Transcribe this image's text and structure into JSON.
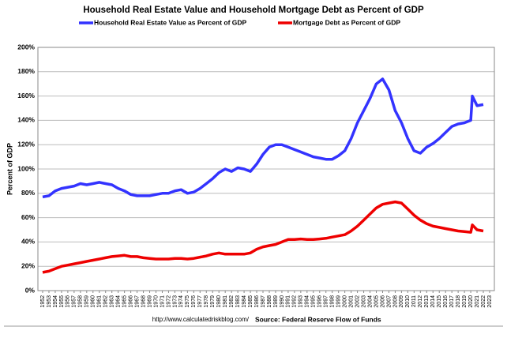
{
  "chart_data": {
    "type": "line",
    "title": "Household Real Estate Value and Household Mortgage Debt as Percent of GDP",
    "y_label": "Percent of GDP",
    "source_url": "http://www.calculatedriskblog.com/",
    "source": "Source: Federal Reserve Flow of Funds",
    "grid": true,
    "legend": "top",
    "xlim": [
      1952,
      2023
    ],
    "xticks": [
      1952,
      1953,
      1954,
      1955,
      1956,
      1957,
      1958,
      1959,
      1960,
      1961,
      1962,
      1963,
      1964,
      1965,
      1966,
      1967,
      1968,
      1969,
      1970,
      1971,
      1972,
      1973,
      1974,
      1975,
      1976,
      1977,
      1978,
      1979,
      1980,
      1981,
      1982,
      1983,
      1984,
      1985,
      1986,
      1987,
      1988,
      1989,
      1990,
      1991,
      1992,
      1993,
      1994,
      1995,
      1996,
      1997,
      1998,
      1999,
      2000,
      2001,
      2002,
      2003,
      2004,
      2005,
      2006,
      2007,
      2008,
      2009,
      2010,
      2011,
      2012,
      2013,
      2014,
      2015,
      2016,
      2017,
      2018,
      2019,
      2020,
      2021,
      2022,
      2023
    ],
    "ylim": [
      0,
      200
    ],
    "yticks": [
      {
        "value": 0,
        "label": "0%"
      },
      {
        "value": 20,
        "label": "20%"
      },
      {
        "value": 40,
        "label": "40%"
      },
      {
        "value": 60,
        "label": "60%"
      },
      {
        "value": 80,
        "label": "80%"
      },
      {
        "value": 100,
        "label": "100%"
      },
      {
        "value": 120,
        "label": "120%"
      },
      {
        "value": 140,
        "label": "140%"
      },
      {
        "value": 160,
        "label": "160%"
      },
      {
        "value": 180,
        "label": "180%"
      },
      {
        "value": 200,
        "label": "200%"
      }
    ],
    "x": [
      1952,
      1953,
      1954,
      1955,
      1956,
      1957,
      1958,
      1959,
      1960,
      1961,
      1962,
      1963,
      1964,
      1965,
      1966,
      1967,
      1968,
      1969,
      1970,
      1971,
      1972,
      1973,
      1974,
      1975,
      1976,
      1977,
      1978,
      1979,
      1980,
      1981,
      1982,
      1983,
      1984,
      1985,
      1986,
      1987,
      1988,
      1989,
      1990,
      1991,
      1992,
      1993,
      1994,
      1995,
      1996,
      1997,
      1998,
      1999,
      2000,
      2001,
      2002,
      2003,
      2004,
      2005,
      2006,
      2007,
      2008,
      2009,
      2010,
      2011,
      2012,
      2013,
      2014,
      2015,
      2016,
      2017,
      2018,
      2019,
      2020,
      2020.25,
      2021,
      2022
    ],
    "series": [
      {
        "name": "Household Real Estate Value as Percent of GDP",
        "color": "#3333ff",
        "values": [
          77,
          78,
          82,
          84,
          85,
          86,
          88,
          87,
          88,
          89,
          88,
          87,
          84,
          82,
          79,
          78,
          78,
          78,
          79,
          80,
          80,
          82,
          83,
          80,
          81,
          84,
          88,
          92,
          97,
          100,
          98,
          101,
          100,
          98,
          104,
          112,
          118,
          120,
          120,
          118,
          116,
          114,
          112,
          110,
          109,
          108,
          108,
          111,
          115,
          125,
          138,
          148,
          158,
          170,
          174,
          165,
          148,
          138,
          125,
          115,
          113,
          118,
          121,
          125,
          130,
          135,
          137,
          138,
          140,
          160,
          152,
          153
        ]
      },
      {
        "name": "Mortgage Debt as Percent of GDP",
        "color": "#ee0000",
        "values": [
          15,
          16,
          18,
          20,
          21,
          22,
          23,
          24,
          25,
          26,
          27,
          28,
          28.5,
          29,
          28,
          28,
          27,
          26.5,
          26,
          26,
          26,
          26.5,
          26.5,
          26,
          26.5,
          27.5,
          28.5,
          30,
          31,
          30,
          30,
          30,
          30,
          31,
          34,
          36,
          37,
          38,
          40,
          42,
          42,
          42.5,
          42,
          42,
          42.5,
          43,
          44,
          45,
          46,
          49,
          53,
          58,
          63,
          68,
          71,
          72,
          73,
          72,
          67,
          62,
          58,
          55,
          53,
          52,
          51,
          50,
          49,
          48.5,
          48,
          54,
          50,
          49
        ]
      }
    ]
  }
}
